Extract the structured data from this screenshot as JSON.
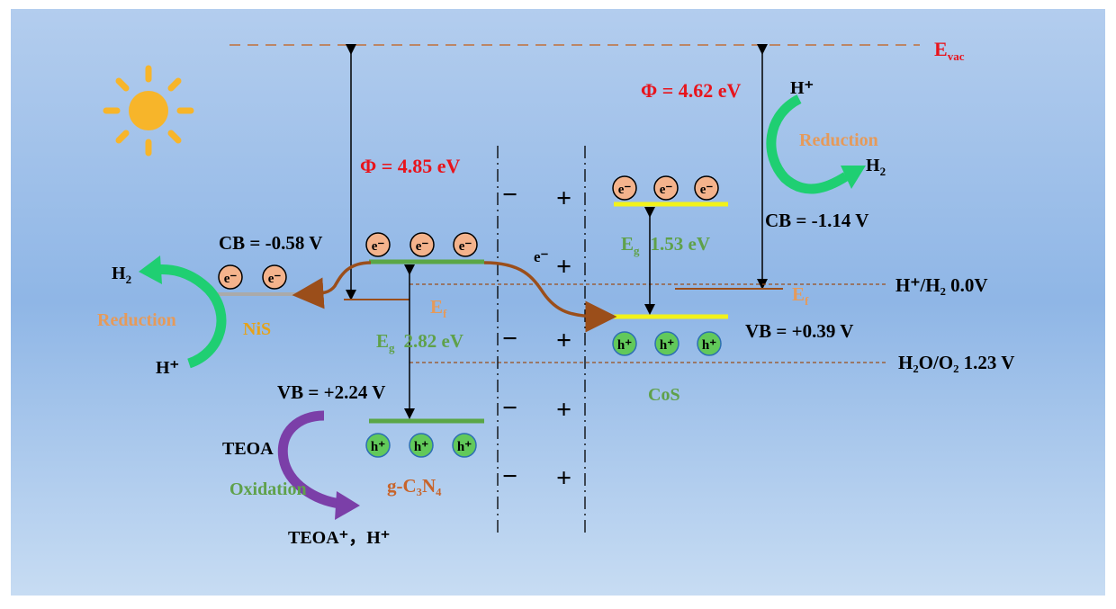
{
  "colors": {
    "panel_top": "#b3cdee",
    "panel_mid": "#8fb6e6",
    "panel_bottom": "#c7dcf3",
    "red_text": "#e8141c",
    "green_text": "#5fa14a",
    "orange_text": "#e59a5a",
    "brown": "#9b4e1a",
    "vacuum_dash": "#c0703a",
    "sun": "#f7b52a",
    "electron_fill": "#f4b38c",
    "hole_fill": "#62c95a",
    "green_band": "#5aa646",
    "yellow_band": "#f2f21a",
    "grey_band": "#aaaaaa",
    "curved_green": "#1fcf72",
    "curved_purple": "#7b3fa8"
  },
  "labels": {
    "evac": {
      "main": "E",
      "sub": "vac"
    },
    "phi_left": "Φ = 4.85 eV",
    "phi_right": "Φ = 4.62 eV",
    "cb_left": "CB = -0.58 V",
    "vb_left": "VB = +2.24 V",
    "cb_right": "CB = -1.14 V",
    "vb_right": "VB = +0.39 V",
    "eg_left": {
      "main": "E",
      "sub": "g",
      "value": "2.82 eV"
    },
    "eg_right": {
      "main": "E",
      "sub": "g",
      "value": "1.53 eV"
    },
    "ef": {
      "main": "E",
      "sub": "f"
    },
    "h_h2": "H⁺/H₂ 0.0V",
    "h2o_o2": "H₂O/O₂ 1.23 V",
    "nis": "NiS",
    "cos": "CoS",
    "gcn": "g-C₃N₄",
    "reduction": "Reduction",
    "oxidation": "Oxidation",
    "teoa": "TEOA",
    "teoa_products": "TEOA⁺，H⁺",
    "h2": "H₂",
    "h_plus": "H⁺",
    "electron": "e⁻",
    "hole": "h⁺",
    "minus": "−",
    "plus": "+"
  },
  "icons": {
    "sun": "sun-icon",
    "electron": "electron-icon",
    "hole": "hole-icon",
    "transfer_arrow": "electron-transfer-arrow-icon"
  }
}
